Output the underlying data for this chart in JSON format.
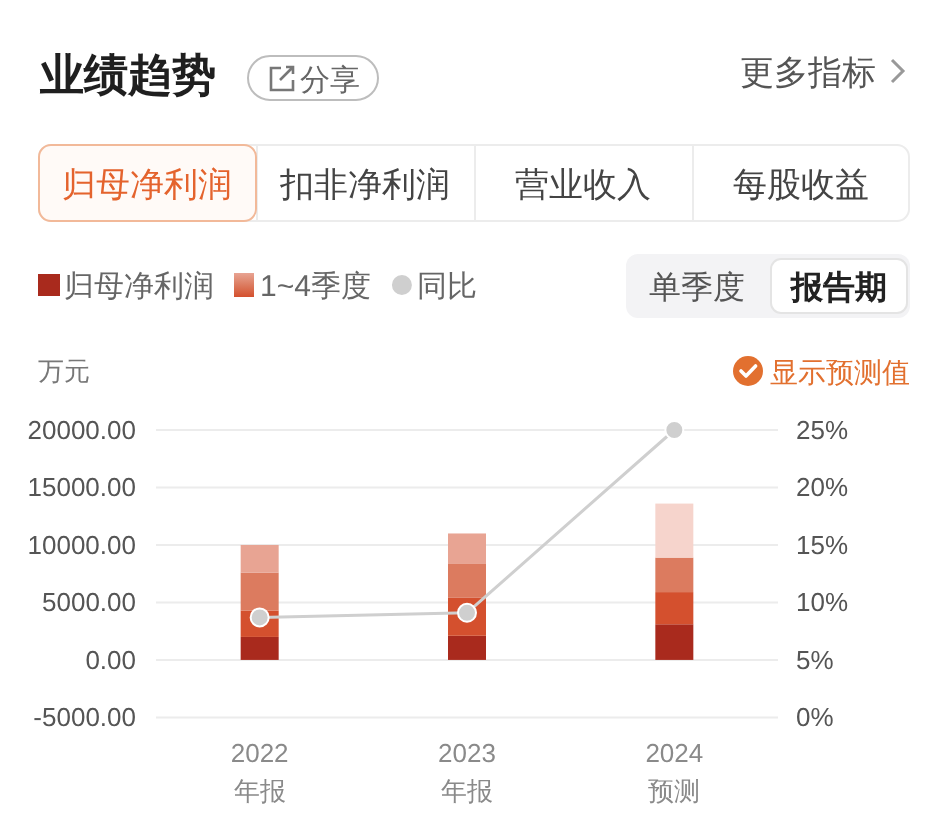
{
  "chart_data": {
    "type": "bar",
    "title": "业绩趋势",
    "ylabel": "万元",
    "annotations": [
      "分享",
      "更多指标",
      "归母净利润",
      "扣非净利润",
      "营业收入",
      "每股收益",
      "单季度",
      "报告期",
      "显示预测值"
    ],
    "categories": [
      "2022\n年报",
      "2023\n年报",
      "2024\n预测"
    ],
    "stacked": true,
    "series": [
      {
        "name": "归母净利润",
        "color": "#a92a1d",
        "values": [
          2000,
          2100,
          3100
        ]
      },
      {
        "name": "1~4季度",
        "color": "#d4502e",
        "values": [
          2300,
          3300,
          2800
        ]
      },
      {
        "color": "#dc7b5f",
        "values": [
          3300,
          3000,
          3000
        ]
      },
      {
        "color": "#e8a493",
        "colors": [
          "#e8a493",
          "#e8a493",
          "#f6d4cc"
        ],
        "values": [
          2400,
          2600,
          4700
        ]
      },
      {
        "name": "同比",
        "type": "line",
        "axis": "y2",
        "color": "#cfcfcf",
        "values": [
          8.7,
          9.1,
          25
        ]
      }
    ],
    "ylim": [
      -5000,
      20000
    ],
    "yticks": [
      {
        "value": -5000,
        "label": "-5000.00"
      },
      {
        "value": 0,
        "label": "0.00"
      },
      {
        "value": 5000,
        "label": "5000.00"
      },
      {
        "value": 10000,
        "label": "10000.00"
      },
      {
        "value": 15000,
        "label": "15000.00"
      },
      {
        "value": 20000,
        "label": "20000.00"
      }
    ],
    "y2lim": [
      0,
      25
    ],
    "y2ticks": [
      {
        "value": 0,
        "label": "0%"
      },
      {
        "value": 5,
        "label": "5%"
      },
      {
        "value": 10,
        "label": "10%"
      },
      {
        "value": 15,
        "label": "15%"
      },
      {
        "value": 20,
        "label": "20%"
      },
      {
        "value": 25,
        "label": "25%"
      }
    ],
    "grid": "y",
    "legend": "top left",
    "marker": "circle"
  }
}
